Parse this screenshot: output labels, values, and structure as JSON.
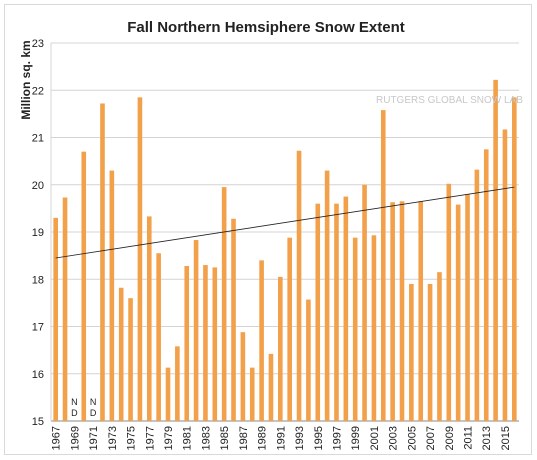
{
  "chart_data": {
    "type": "bar",
    "title": "Fall Northern Hemsiphere Snow Extent",
    "xlabel": "",
    "ylabel": "Million sq. km",
    "ylim": [
      15,
      23
    ],
    "yticks": [
      15,
      16,
      17,
      18,
      19,
      20,
      21,
      22,
      23
    ],
    "grid": true,
    "watermark": "RUTGERS GLOBAL SNOW LAB",
    "no_data_label": "N D",
    "bar_color": "#f2a04a",
    "trend_color": "#222222",
    "trendline": {
      "start": 18.45,
      "end": 19.95
    },
    "categories": [
      "1967",
      "1968",
      "1969",
      "1970",
      "1971",
      "1972",
      "1973",
      "1974",
      "1975",
      "1976",
      "1977",
      "1978",
      "1979",
      "1980",
      "1981",
      "1982",
      "1983",
      "1984",
      "1985",
      "1986",
      "1987",
      "1988",
      "1989",
      "1990",
      "1991",
      "1992",
      "1993",
      "1994",
      "1995",
      "1996",
      "1997",
      "1998",
      "1999",
      "2000",
      "2001",
      "2002",
      "2003",
      "2004",
      "2005",
      "2006",
      "2007",
      "2008",
      "2009",
      "2010",
      "2011",
      "2012",
      "2013",
      "2014",
      "2015",
      "2016"
    ],
    "tick_labels": [
      "1967",
      "1969",
      "1971",
      "1973",
      "1975",
      "1977",
      "1979",
      "1981",
      "1983",
      "1985",
      "1987",
      "1989",
      "1991",
      "1993",
      "1995",
      "1997",
      "1999",
      "2001",
      "2003",
      "2005",
      "2007",
      "2009",
      "2011",
      "2013",
      "2015"
    ],
    "values": [
      19.3,
      19.73,
      null,
      20.7,
      null,
      21.72,
      20.3,
      17.82,
      17.6,
      21.85,
      19.33,
      18.55,
      16.13,
      16.58,
      18.28,
      18.83,
      18.3,
      18.25,
      19.95,
      19.28,
      16.88,
      16.13,
      18.4,
      16.42,
      18.05,
      18.88,
      20.72,
      17.57,
      19.6,
      20.3,
      19.6,
      19.75,
      18.88,
      20.0,
      18.93,
      21.58,
      19.63,
      19.65,
      17.9,
      19.65,
      17.9,
      18.15,
      20.02,
      19.58,
      19.8,
      20.32,
      20.75,
      22.22,
      21.17,
      21.85
    ]
  }
}
